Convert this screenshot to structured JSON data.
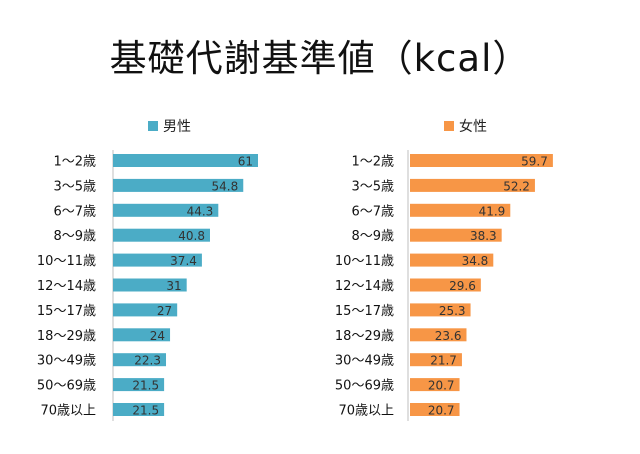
{
  "title": "基礎代謝基準値（kcal）",
  "colors": {
    "male": "#4bacc6",
    "female": "#f79646"
  },
  "chart_data": [
    {
      "type": "bar",
      "orientation": "horizontal",
      "legend": "top",
      "categories": [
        "1～2歳",
        "3～5歳",
        "6～7歳",
        "8～9歳",
        "10～11歳",
        "12～14歳",
        "15～17歳",
        "18～29歳",
        "30～49歳",
        "50～69歳",
        "70歳以上"
      ],
      "series": [
        {
          "name": "男性",
          "values": [
            "61",
            "54.8",
            "44.3",
            "40.8",
            "37.4",
            "31",
            "27",
            "24",
            "22.3",
            "21.5",
            "21.5"
          ]
        }
      ],
      "xlim": [
        0,
        61
      ]
    },
    {
      "type": "bar",
      "orientation": "horizontal",
      "legend": "top",
      "categories": [
        "1～2歳",
        "3～5歳",
        "6～7歳",
        "8～9歳",
        "10～11歳",
        "12～14歳",
        "15～17歳",
        "18～29歳",
        "30～49歳",
        "50～69歳",
        "70歳以上"
      ],
      "series": [
        {
          "name": "女性",
          "values": [
            "59.7",
            "52.2",
            "41.9",
            "38.3",
            "34.8",
            "29.6",
            "25.3",
            "23.6",
            "21.7",
            "20.7",
            "20.7"
          ]
        }
      ],
      "xlim": [
        0,
        61
      ]
    }
  ]
}
